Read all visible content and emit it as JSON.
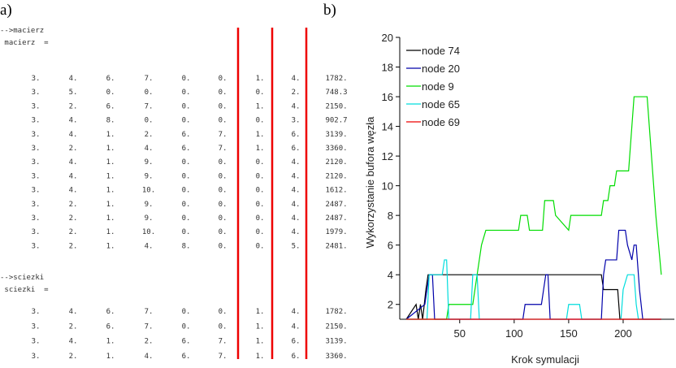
{
  "panel_a": {
    "label": "a)",
    "prompt1": "-->macierz",
    "name1": " macierz  =",
    "rows1": [
      [
        "3.",
        "4.",
        "6.",
        "7.",
        "0.",
        "0.",
        "1.",
        "4.",
        "1782."
      ],
      [
        "3.",
        "5.",
        "0.",
        "0.",
        "0.",
        "0.",
        "0.",
        "2.",
        "748.3"
      ],
      [
        "3.",
        "2.",
        "6.",
        "7.",
        "0.",
        "0.",
        "1.",
        "4.",
        "2150."
      ],
      [
        "3.",
        "4.",
        "8.",
        "0.",
        "0.",
        "0.",
        "0.",
        "3.",
        "902.7"
      ],
      [
        "3.",
        "4.",
        "1.",
        "2.",
        "6.",
        "7.",
        "1.",
        "6.",
        "3139."
      ],
      [
        "3.",
        "2.",
        "1.",
        "4.",
        "6.",
        "7.",
        "1.",
        "6.",
        "3360."
      ],
      [
        "3.",
        "4.",
        "1.",
        "9.",
        "0.",
        "0.",
        "0.",
        "4.",
        "2120."
      ],
      [
        "3.",
        "4.",
        "1.",
        "9.",
        "0.",
        "0.",
        "0.",
        "4.",
        "2120."
      ],
      [
        "3.",
        "4.",
        "1.",
        "10.",
        "0.",
        "0.",
        "0.",
        "4.",
        "1612."
      ],
      [
        "3.",
        "2.",
        "1.",
        "9.",
        "0.",
        "0.",
        "0.",
        "4.",
        "2487."
      ],
      [
        "3.",
        "2.",
        "1.",
        "9.",
        "0.",
        "0.",
        "0.",
        "4.",
        "2487."
      ],
      [
        "3.",
        "2.",
        "1.",
        "10.",
        "0.",
        "0.",
        "0.",
        "4.",
        "1979."
      ],
      [
        "3.",
        "2.",
        "1.",
        "4.",
        "8.",
        "0.",
        "0.",
        "5.",
        "2481."
      ]
    ],
    "prompt2": "-->sciezki",
    "name2": " sciezki  =",
    "rows2": [
      [
        "3.",
        "4.",
        "6.",
        "7.",
        "0.",
        "0.",
        "1.",
        "4.",
        "1782."
      ],
      [
        "3.",
        "2.",
        "6.",
        "7.",
        "0.",
        "0.",
        "1.",
        "4.",
        "2150."
      ],
      [
        "3.",
        "4.",
        "1.",
        "2.",
        "6.",
        "7.",
        "1.",
        "6.",
        "3139."
      ],
      [
        "3.",
        "2.",
        "1.",
        "4.",
        "6.",
        "7.",
        "1.",
        "6.",
        "3360."
      ]
    ]
  },
  "chart_data": {
    "type": "line",
    "panel_label": "b)",
    "x_label": "Krok symulacji",
    "y_label": "Wykorzystanie bufora węzła",
    "xlim": [
      -5,
      247
    ],
    "ylim": [
      1,
      20
    ],
    "xticks": [
      50,
      100,
      150,
      200
    ],
    "yticks": [
      2,
      4,
      6,
      8,
      10,
      12,
      14,
      16,
      18,
      20
    ],
    "legend": "upper left",
    "series": [
      {
        "name": "node 74",
        "color": "#000000",
        "x": [
          1,
          10,
          12,
          14,
          16,
          19,
          21,
          180,
          182,
          195,
          197,
          235
        ],
        "values": [
          1,
          2,
          1,
          2,
          1,
          3,
          4,
          4,
          3,
          3,
          1,
          1
        ]
      },
      {
        "name": "node 20",
        "color": "#0000aa",
        "x": [
          1,
          18,
          20,
          22,
          25,
          27,
          108,
          110,
          125,
          127,
          129,
          131,
          133,
          180,
          182,
          184,
          194,
          196,
          202,
          204,
          208,
          210,
          212,
          215,
          218,
          235
        ],
        "values": [
          1,
          2,
          3,
          4,
          4,
          1,
          1,
          2,
          2,
          3,
          4,
          4,
          1,
          1,
          4,
          5,
          5,
          7,
          7,
          6,
          5,
          6,
          6,
          3,
          1,
          1
        ]
      },
      {
        "name": "node 9",
        "color": "#00dd00",
        "x": [
          1,
          38,
          40,
          62,
          64,
          66,
          70,
          74,
          104,
          106,
          112,
          114,
          126,
          128,
          136,
          138,
          150,
          152,
          180,
          182,
          186,
          188,
          192,
          194,
          205,
          206,
          208,
          210,
          222,
          226,
          230,
          235
        ],
        "values": [
          1,
          1,
          2,
          2,
          3,
          4,
          6,
          7,
          7,
          8,
          8,
          7,
          7,
          9,
          9,
          8,
          7,
          8,
          8,
          9,
          9,
          10,
          10,
          11,
          11,
          12,
          14,
          16,
          16,
          12,
          8,
          4
        ]
      },
      {
        "name": "node 65",
        "color": "#00dddd",
        "x": [
          1,
          20,
          22,
          34,
          36,
          38,
          40,
          60,
          62,
          66,
          68,
          148,
          150,
          160,
          162,
          198,
          200,
          204,
          210,
          212,
          214,
          235
        ],
        "values": [
          1,
          1,
          4,
          4,
          5,
          5,
          1,
          1,
          4,
          4,
          1,
          1,
          2,
          2,
          1,
          1,
          3,
          4,
          4,
          2,
          1,
          1
        ]
      },
      {
        "name": "node 69",
        "color": "#ee0000",
        "x": [
          1,
          235
        ],
        "values": [
          1,
          1
        ]
      }
    ]
  }
}
